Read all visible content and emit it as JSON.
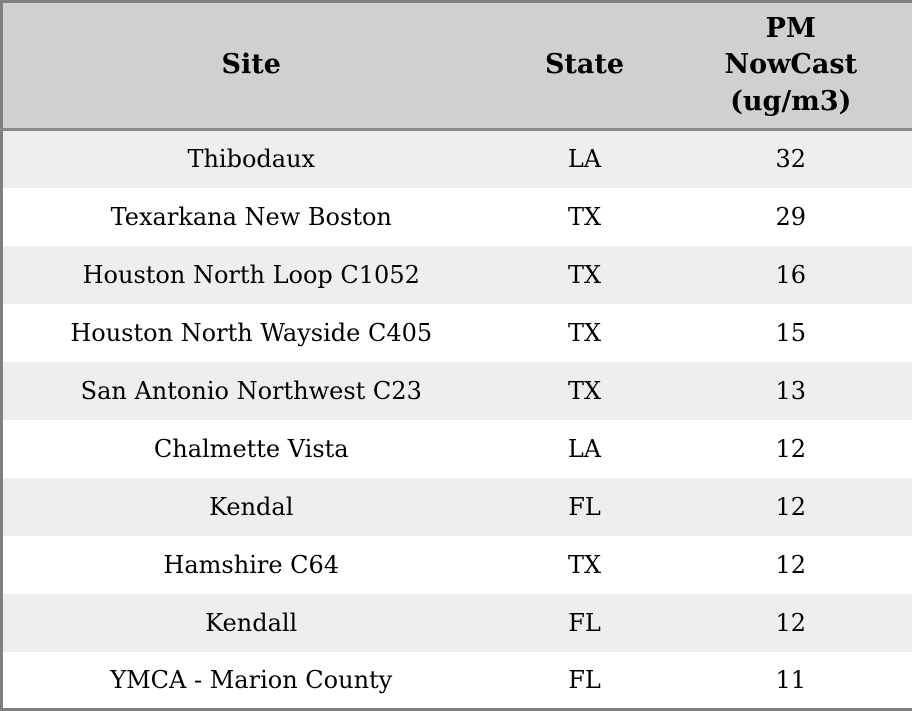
{
  "colors": {
    "header_bg": "#d0d0d0",
    "header_separator": "#888888",
    "outer_border": "#7f7f7f",
    "row_alt_bg": "#eeeeee",
    "row_bg": "#ffffff",
    "text": "#000000"
  },
  "table": {
    "columns": {
      "site": "Site",
      "state": "State",
      "pm_nowcast": "PM NowCast (ug/m3)"
    },
    "rows": [
      {
        "site": "Thibodaux",
        "state": "LA",
        "pm_nowcast": "32"
      },
      {
        "site": "Texarkana New Boston",
        "state": "TX",
        "pm_nowcast": "29"
      },
      {
        "site": "Houston North Loop C1052",
        "state": "TX",
        "pm_nowcast": "16"
      },
      {
        "site": "Houston North Wayside C405",
        "state": "TX",
        "pm_nowcast": "15"
      },
      {
        "site": "San Antonio Northwest C23",
        "state": "TX",
        "pm_nowcast": "13"
      },
      {
        "site": "Chalmette Vista",
        "state": "LA",
        "pm_nowcast": "12"
      },
      {
        "site": "Kendal",
        "state": "FL",
        "pm_nowcast": "12"
      },
      {
        "site": "Hamshire C64",
        "state": "TX",
        "pm_nowcast": "12"
      },
      {
        "site": "Kendall",
        "state": "FL",
        "pm_nowcast": "12"
      },
      {
        "site": "YMCA - Marion County",
        "state": "FL",
        "pm_nowcast": "11"
      }
    ]
  },
  "chart_data": {
    "type": "table",
    "title": "",
    "columns": [
      "Site",
      "State",
      "PM NowCast (ug/m3)"
    ],
    "rows": [
      [
        "Thibodaux",
        "LA",
        32
      ],
      [
        "Texarkana New Boston",
        "TX",
        29
      ],
      [
        "Houston North Loop C1052",
        "TX",
        16
      ],
      [
        "Houston North Wayside C405",
        "TX",
        15
      ],
      [
        "San Antonio Northwest C23",
        "TX",
        13
      ],
      [
        "Chalmette Vista",
        "LA",
        12
      ],
      [
        "Kendal",
        "FL",
        12
      ],
      [
        "Hamshire C64",
        "TX",
        12
      ],
      [
        "Kendall",
        "FL",
        12
      ],
      [
        "YMCA - Marion County",
        "FL",
        11
      ]
    ]
  }
}
